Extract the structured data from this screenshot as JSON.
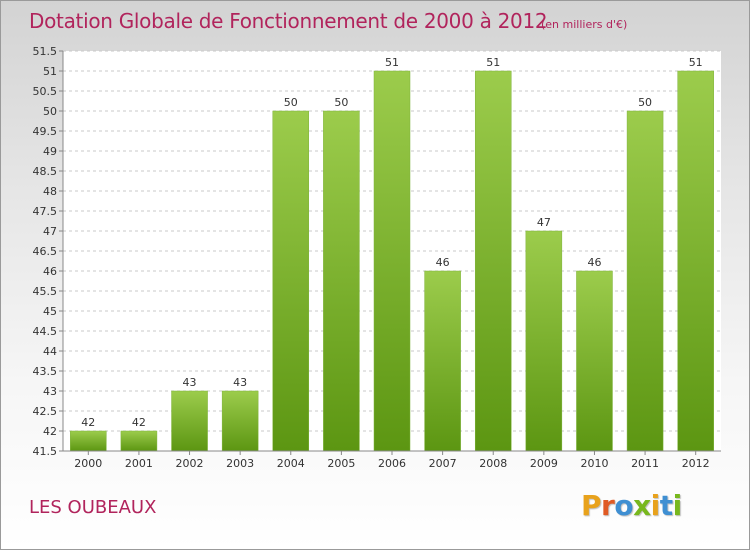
{
  "header": {
    "title": "Dotation Globale de Fonctionnement de 2000 à 2012",
    "subtitle": "(en milliers d'€)"
  },
  "footer": {
    "commune": "LES OUBEAUX",
    "logo": {
      "letters": [
        "P",
        "r",
        "o",
        "x",
        "i",
        "t",
        "i"
      ],
      "colors": [
        "#e8a21c",
        "#e05a24",
        "#3f8fd2",
        "#78b81e",
        "#e8a21c",
        "#3f8fd2",
        "#78b81e"
      ]
    }
  },
  "colors": {
    "text_accent": "#b1245c",
    "bar_light": "#9ccc4c",
    "bar_dark": "#5c9612",
    "grid": "#c9c9c9"
  },
  "chart_data": {
    "type": "bar",
    "categories": [
      "2000",
      "2001",
      "2002",
      "2003",
      "2004",
      "2005",
      "2006",
      "2007",
      "2008",
      "2009",
      "2010",
      "2011",
      "2012"
    ],
    "values": [
      42,
      42,
      43,
      43,
      50,
      50,
      51,
      46,
      51,
      47,
      46,
      50,
      51
    ],
    "ylim": [
      41.5,
      51.5
    ],
    "yticks": [
      "41.5",
      "42",
      "42.5",
      "43",
      "43.5",
      "44",
      "44.5",
      "45",
      "45.5",
      "46",
      "46.5",
      "47",
      "47.5",
      "48",
      "48.5",
      "49",
      "49.5",
      "50",
      "50.5",
      "51",
      "51.5"
    ],
    "title": "Dotation Globale de Fonctionnement de 2000 à 2012",
    "subtitle": "(en milliers d'€)",
    "xlabel": "",
    "ylabel": "",
    "grid": true
  }
}
